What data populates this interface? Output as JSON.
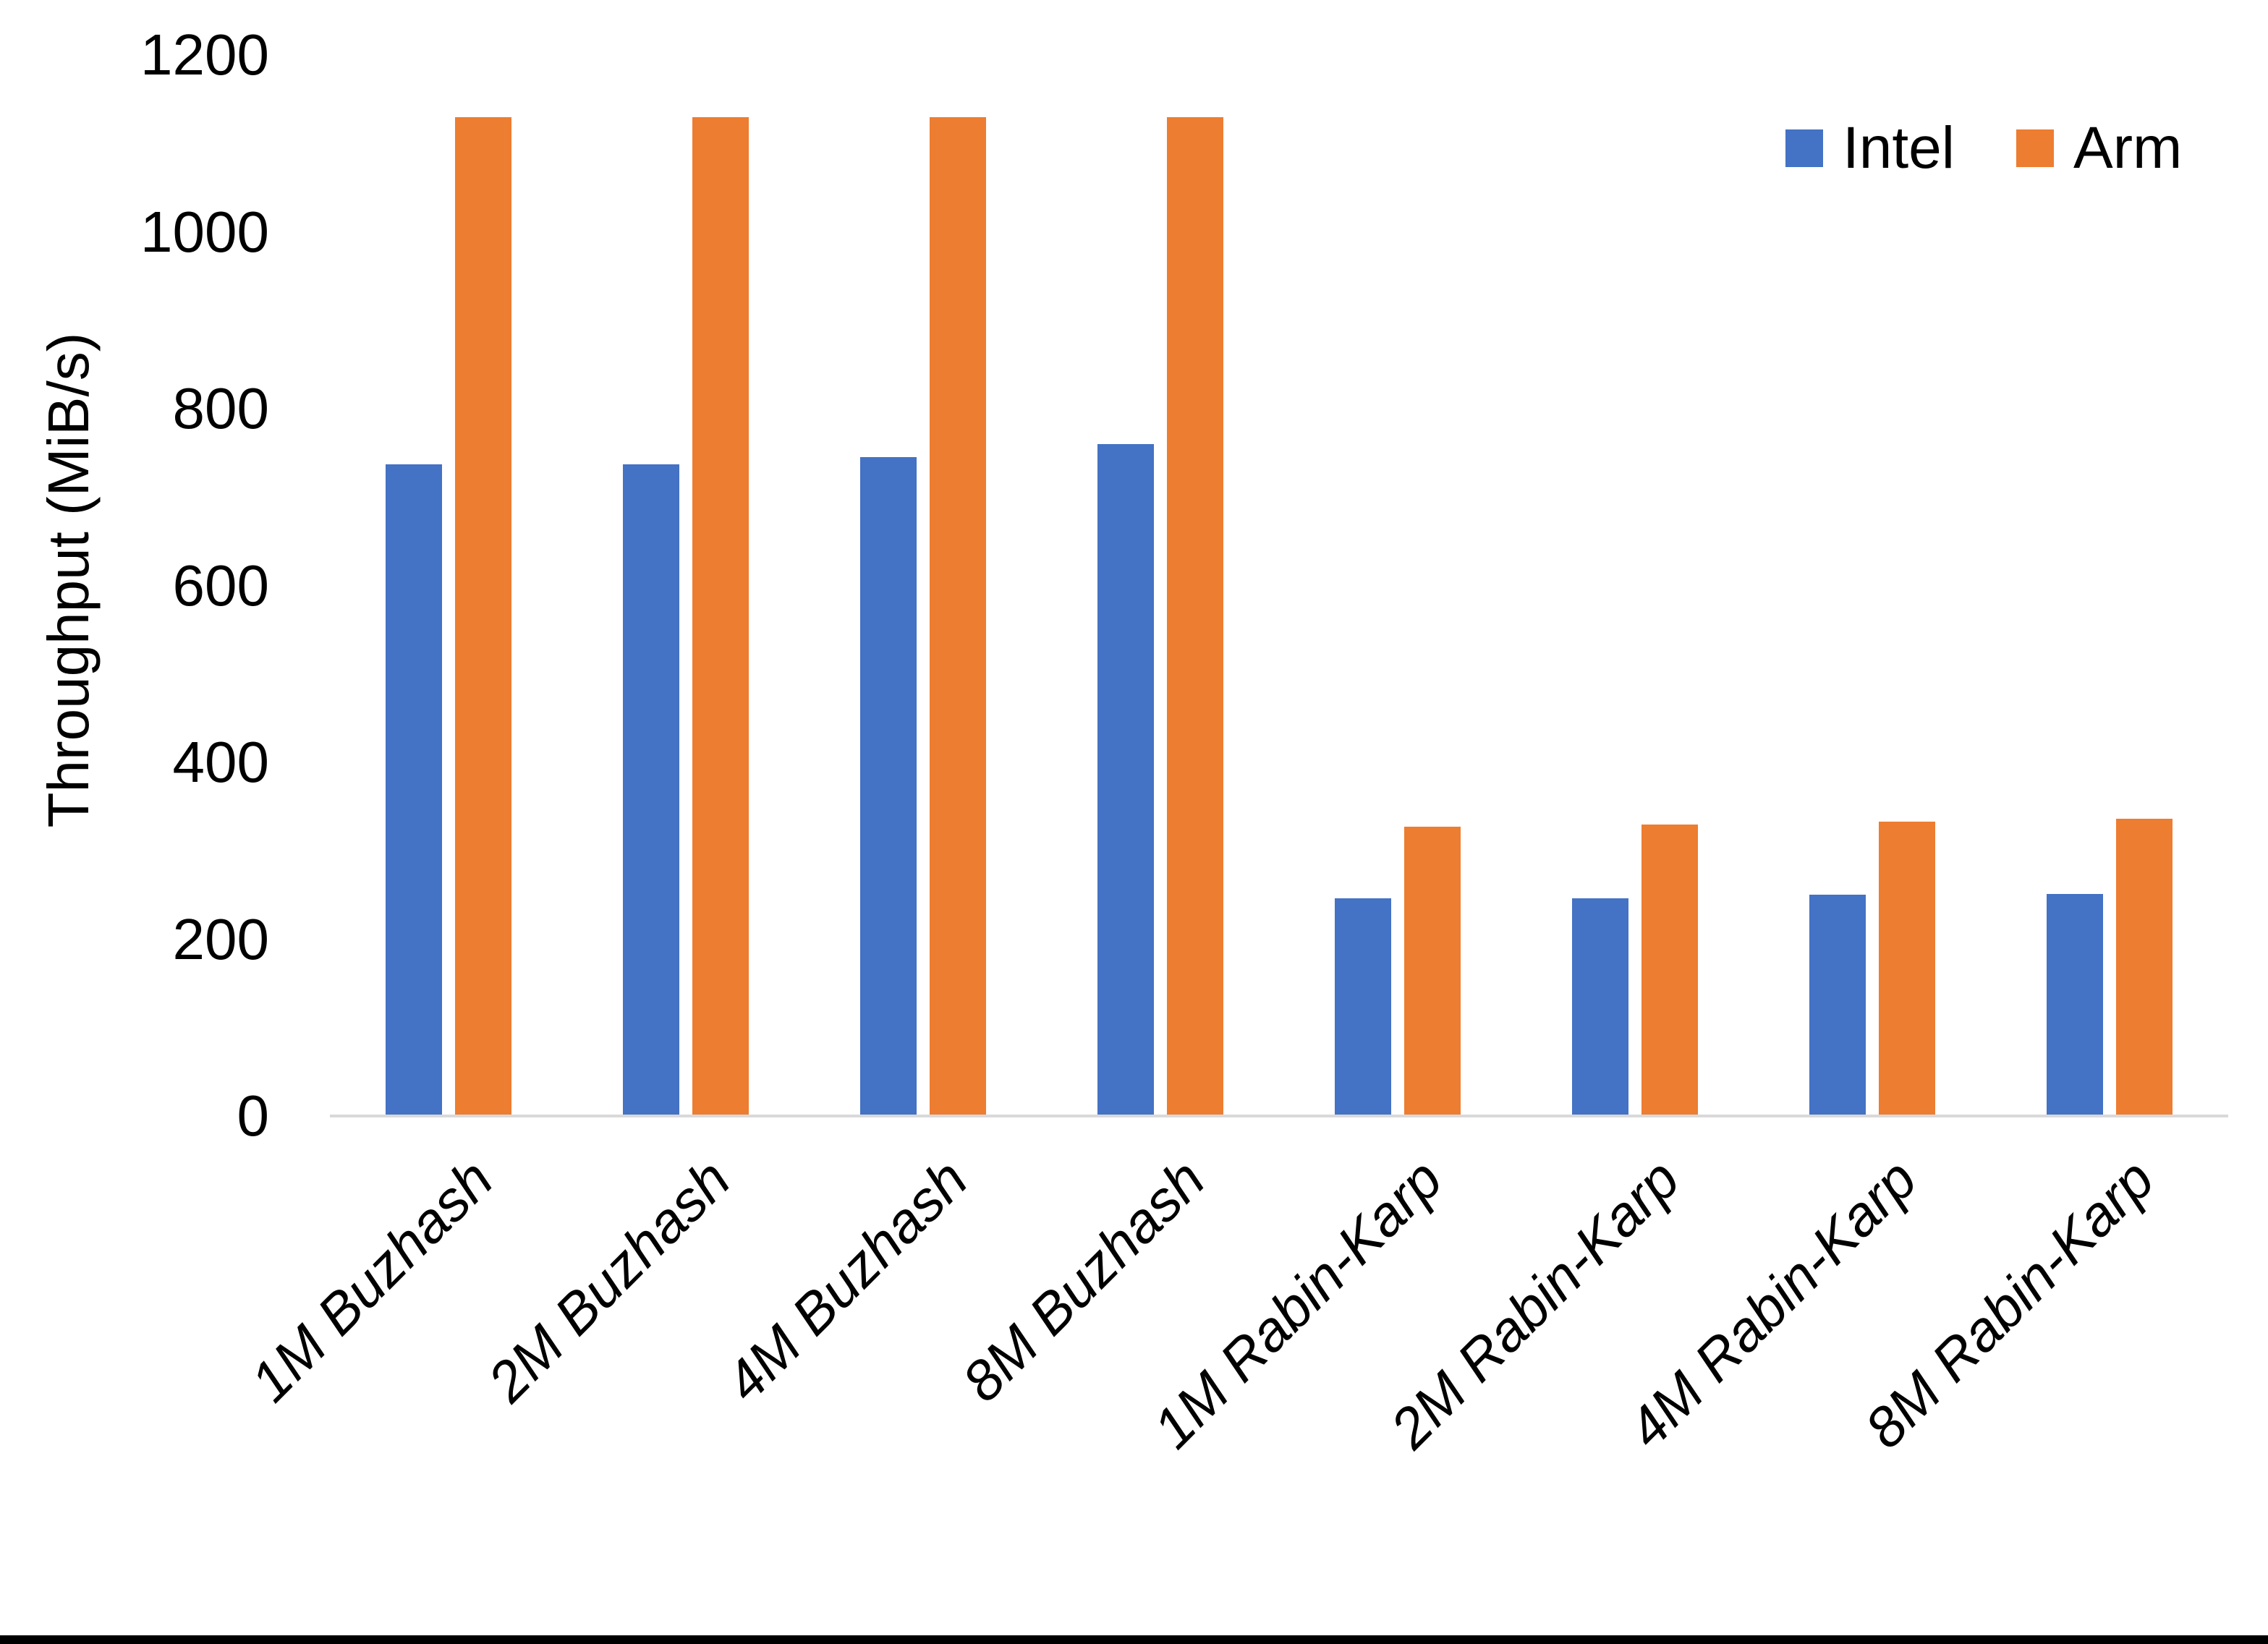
{
  "chart_data": {
    "type": "bar",
    "title": "",
    "ylabel": "Throughput (MiB/s)",
    "xlabel": "",
    "ylim": [
      0,
      1200
    ],
    "yticks": [
      0,
      200,
      400,
      600,
      800,
      1000,
      1200
    ],
    "grid": false,
    "legend_position": "top-right",
    "categories": [
      "1M Buzhash",
      "2M Buzhash",
      "4M Buzhash",
      "8M Buzhash",
      "1M Rabin-Karp",
      "2M Rabin-Karp",
      "4M Rabin-Karp",
      "8M Rabin-Karp"
    ],
    "series": [
      {
        "name": "Intel",
        "color": "#4472C4",
        "values": [
          737,
          737,
          745,
          760,
          246,
          246,
          250,
          251
        ]
      },
      {
        "name": "Arm",
        "color": "#ED7D31",
        "values": [
          1130,
          1130,
          1130,
          1130,
          327,
          330,
          333,
          336
        ]
      }
    ]
  },
  "legend": {
    "items": [
      {
        "label": "Intel",
        "color": "#4472C4"
      },
      {
        "label": "Arm",
        "color": "#ED7D31"
      }
    ]
  },
  "axis": {
    "line_color": "#d9d9d9",
    "text_color": "#000000"
  },
  "page": {
    "background": "#ffffff",
    "bottom_border_color": "#000000"
  }
}
